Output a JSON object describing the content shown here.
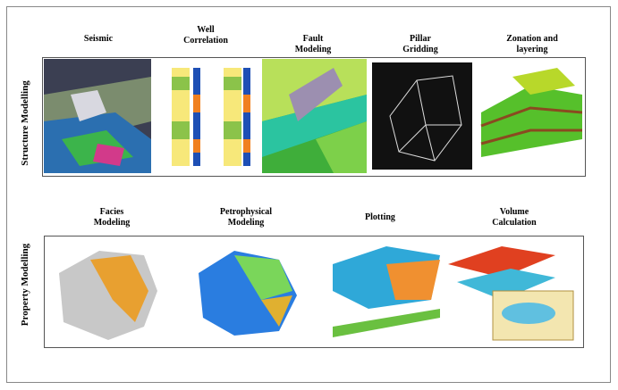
{
  "side_labels": [
    "Structure Modelling",
    "Property Modelling"
  ],
  "top_row": [
    {
      "label": [
        "Seismic"
      ]
    },
    {
      "label": [
        "Well",
        "Correlation"
      ]
    },
    {
      "label": [
        "Fault",
        "Modeling"
      ]
    },
    {
      "label": [
        "Pillar",
        "Gridding"
      ]
    },
    {
      "label": [
        "Zonation and",
        "layering"
      ]
    }
  ],
  "bottom_row": [
    {
      "label": [
        "Facies",
        "Modeling"
      ]
    },
    {
      "label": [
        "Petrophysical",
        "Modeling"
      ]
    },
    {
      "label": [
        "Plotting"
      ]
    },
    {
      "label": [
        "Volume",
        "Calculation"
      ]
    }
  ]
}
